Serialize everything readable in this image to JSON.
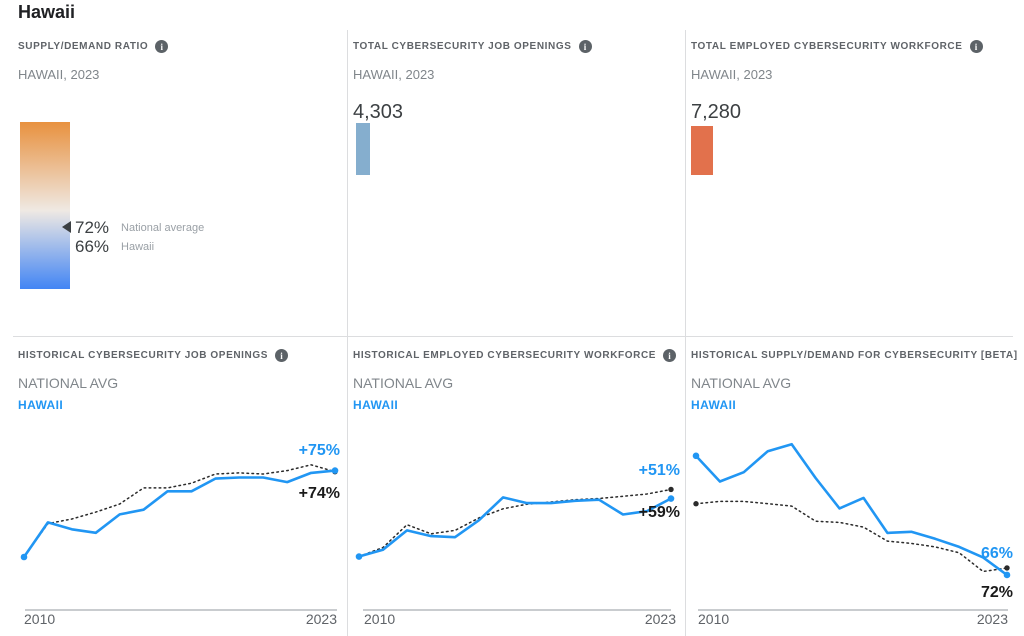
{
  "page": {
    "title": "Hawaii"
  },
  "colors": {
    "accent_blue": "#2196f3",
    "line_black": "#2b2b2b",
    "bar_blue": "#85AECE",
    "bar_orange": "#E2714C",
    "gradient_top_orange": "#E8913F",
    "gradient_mid_white": "#EFE9E3",
    "gradient_bottom_blue": "#4285F4"
  },
  "panels": {
    "supply_demand": {
      "header": "SUPPLY/DEMAND RATIO",
      "subtitle": "HAWAII, 2023",
      "national_value": "72%",
      "national_label": "National average",
      "state_value": "66%",
      "state_label": "Hawaii"
    },
    "job_openings": {
      "header": "TOTAL CYBERSECURITY JOB OPENINGS",
      "subtitle": "HAWAII, 2023",
      "value": "4,303"
    },
    "workforce": {
      "header": "TOTAL EMPLOYED CYBERSECURITY WORKFORCE",
      "subtitle": "HAWAII, 2023",
      "value": "7,280"
    },
    "hist_openings": {
      "header": "HISTORICAL CYBERSECURITY JOB OPENINGS"
    },
    "hist_workforce": {
      "header": "HISTORICAL EMPLOYED CYBERSECURITY WORKFORCE"
    },
    "hist_ratio": {
      "header": "HISTORICAL SUPPLY/DEMAND FOR CYBERSECURITY [BETA]"
    }
  },
  "chart_data": [
    {
      "type": "bar",
      "title": "SUPPLY/DEMAND RATIO",
      "subtitle": "HAWAII, 2023",
      "categories": [
        "National average",
        "Hawaii"
      ],
      "values": [
        72,
        66
      ],
      "unit": "%"
    },
    {
      "type": "bar",
      "title": "TOTAL CYBERSECURITY JOB OPENINGS",
      "categories": [
        "HAWAII, 2023"
      ],
      "values": [
        4303
      ]
    },
    {
      "type": "bar",
      "title": "TOTAL EMPLOYED CYBERSECURITY WORKFORCE",
      "categories": [
        "HAWAII, 2023"
      ],
      "values": [
        7280
      ]
    },
    {
      "id": "chart-hist-openings",
      "type": "line",
      "title": "HISTORICAL CYBERSECURITY JOB OPENINGS",
      "x": [
        2010,
        2011,
        2012,
        2013,
        2014,
        2015,
        2016,
        2017,
        2018,
        2019,
        2020,
        2021,
        2022,
        2023
      ],
      "xlabels": [
        "2010",
        "2023"
      ],
      "ylim": [
        -46,
        105
      ],
      "unit": "% change since 2010",
      "legend_position": "top-left",
      "grid": false,
      "series": [
        {
          "name": "NATIONAL AVG",
          "color": "#2b2b2b",
          "style": "dotted",
          "values": [
            0,
            29,
            33,
            39,
            46,
            60,
            60,
            64,
            72,
            73,
            72,
            75,
            80,
            74
          ],
          "end_label": "+74%"
        },
        {
          "name": "HAWAII",
          "color": "#2196f3",
          "style": "solid",
          "values": [
            0,
            30,
            24,
            21,
            37,
            41,
            57,
            57,
            68,
            69,
            69,
            65,
            73,
            75
          ],
          "end_label": "+75%"
        }
      ]
    },
    {
      "id": "chart-hist-workforce",
      "type": "line",
      "title": "HISTORICAL EMPLOYED CYBERSECURITY WORKFORCE",
      "x": [
        2010,
        2011,
        2012,
        2013,
        2014,
        2015,
        2016,
        2017,
        2018,
        2019,
        2020,
        2021,
        2022,
        2023
      ],
      "xlabels": [
        "2010",
        "2023"
      ],
      "ylim": [
        -47,
        106
      ],
      "unit": "% change since 2010",
      "legend_position": "top-left",
      "grid": false,
      "series": [
        {
          "name": "NATIONAL AVG",
          "color": "#2b2b2b",
          "style": "dotted",
          "values": [
            0,
            8,
            28,
            20,
            23,
            34,
            42,
            46,
            48,
            50,
            51,
            53,
            55,
            59
          ],
          "end_label": "+59%"
        },
        {
          "name": "HAWAII",
          "color": "#2196f3",
          "style": "solid",
          "values": [
            0,
            6,
            23,
            18,
            17,
            32,
            52,
            47,
            47,
            49,
            50,
            37,
            40,
            51
          ],
          "end_label": "+51%"
        }
      ]
    },
    {
      "id": "chart-hist-ratio",
      "type": "line",
      "title": "HISTORICAL SUPPLY/DEMAND FOR CYBERSECURITY [BETA]",
      "x": [
        2010,
        2011,
        2012,
        2013,
        2014,
        2015,
        2016,
        2017,
        2018,
        2019,
        2020,
        2021,
        2022,
        2023
      ],
      "xlabels": [
        "2010",
        "2023"
      ],
      "ylim": [
        36,
        185
      ],
      "unit": "supply/demand ratio %",
      "legend_position": "top-left",
      "grid": false,
      "series": [
        {
          "name": "NATIONAL AVG",
          "color": "#2b2b2b",
          "style": "dotted",
          "values": [
            127,
            129,
            129,
            127,
            125,
            112,
            111,
            107,
            95,
            93,
            90,
            85,
            69,
            72
          ],
          "end_label": "72%"
        },
        {
          "name": "HAWAII",
          "color": "#2196f3",
          "style": "solid",
          "values": [
            168,
            146,
            154,
            172,
            178,
            149,
            123,
            132,
            102,
            103,
            97,
            90,
            81,
            66
          ],
          "end_label": "66%"
        }
      ]
    }
  ]
}
